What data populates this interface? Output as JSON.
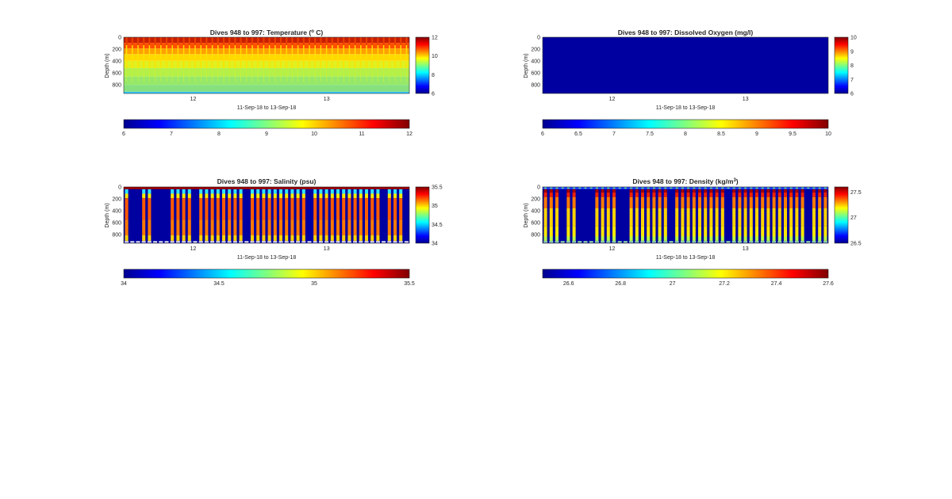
{
  "chart_data": [
    {
      "type": "heatmap",
      "title": "Dives 948 to 997: Temperature (",
      "title_sup": "o",
      "title_end": " C)",
      "xlabel": "11-Sep-18 to 13-Sep-18",
      "ylabel": "Depth (m)",
      "ylim": [
        0,
        950
      ],
      "y_ticks": [
        "0",
        "200",
        "400",
        "600",
        "800"
      ],
      "x_ticks": [
        "12",
        "13"
      ],
      "x_range": [
        11.48,
        13.62
      ],
      "x_tick_values": [
        12,
        13
      ],
      "clim": [
        6,
        12
      ],
      "colorbar_ticks": [
        "12",
        "10",
        "8",
        "6"
      ],
      "h_colorbar_ticks": [
        "6",
        "7",
        "8",
        "9",
        "10",
        "11",
        "12"
      ],
      "pattern": "temperature",
      "profile_count": 50
    },
    {
      "type": "heatmap",
      "title": "Dives 948 to 997: Dissolved Oxygen (mg/l)",
      "title_sup": "",
      "title_end": "",
      "xlabel": "11-Sep-18 to 13-Sep-18",
      "ylabel": "Depth (m)",
      "ylim": [
        0,
        950
      ],
      "y_ticks": [
        "0",
        "200",
        "400",
        "600",
        "800"
      ],
      "x_ticks": [
        "12",
        "13"
      ],
      "x_range": [
        11.48,
        13.62
      ],
      "x_tick_values": [
        12,
        13
      ],
      "clim": [
        6,
        10
      ],
      "colorbar_ticks": [
        "10",
        "9",
        "8",
        "7",
        "6"
      ],
      "h_colorbar_ticks": [
        "6",
        "6.5",
        "7",
        "7.5",
        "8",
        "8.5",
        "9",
        "9.5",
        "10"
      ],
      "pattern": "empty",
      "profile_count": 50
    },
    {
      "type": "heatmap",
      "title": "Dives 948 to 997: Salinity (psu)",
      "title_sup": "",
      "title_end": "",
      "xlabel": "11-Sep-18 to 13-Sep-18",
      "ylabel": "Depth (m)",
      "ylim": [
        0,
        950
      ],
      "y_ticks": [
        "0",
        "200",
        "400",
        "600",
        "800"
      ],
      "x_ticks": [
        "12",
        "13"
      ],
      "x_range": [
        11.48,
        13.62
      ],
      "x_tick_values": [
        12,
        13
      ],
      "clim": [
        34,
        35.5
      ],
      "colorbar_ticks": [
        "35.5",
        "35",
        "34.5",
        "34"
      ],
      "h_colorbar_ticks": [
        "34",
        "34.5",
        "35",
        "35.5"
      ],
      "pattern": "salinity",
      "profile_count": 50
    },
    {
      "type": "heatmap",
      "title": "Dives 948 to 997: Density (kg/m",
      "title_sup": "3",
      "title_end": ")",
      "xlabel": "11-Sep-18 to 13-Sep-18",
      "ylabel": "Depth (m)",
      "ylim": [
        0,
        950
      ],
      "y_ticks": [
        "0",
        "200",
        "400",
        "600",
        "800"
      ],
      "x_ticks": [
        "12",
        "13"
      ],
      "x_range": [
        11.48,
        13.62
      ],
      "x_tick_values": [
        12,
        13
      ],
      "clim": [
        26.5,
        27.6
      ],
      "colorbar_ticks": [
        "27.5",
        "27",
        "26.5"
      ],
      "colorbar_tick_values": [
        27.5,
        27,
        26.5
      ],
      "h_colorbar_ticks": [
        "26.6",
        "26.8",
        "27",
        "27.2",
        "27.4",
        "27.6"
      ],
      "h_colorbar_tick_values": [
        26.6,
        26.8,
        27,
        27.2,
        27.4,
        27.6
      ],
      "pattern": "density",
      "profile_count": 50
    }
  ]
}
